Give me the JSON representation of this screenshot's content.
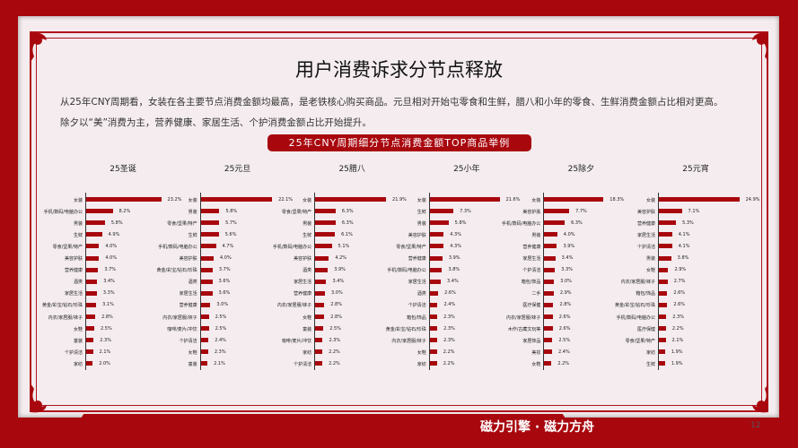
{
  "title": "用户消费诉求分节点释放",
  "paragraphs": [
    "从25年CNY周期看，女装在各主要节点消费金额均最高，是老铁核心购买商品。元旦相对开始屯零食和生鲜，腊八和小年的零食、生鲜消费金额占比相对更高。",
    "除夕以“美”消费为主，营养健康、家居生活、个护消费金额占比开始提升。"
  ],
  "banner": "25年CNY周期细分节点消费金额TOP商品举例",
  "footer": {
    "logo": "磁力引擎 · 磁力方舟",
    "page": "12"
  },
  "colors": {
    "bar": "#a8070e",
    "background": "#f4ecee",
    "frame": "#a8070e"
  },
  "chart_data": [
    {
      "type": "bar",
      "orientation": "horizontal",
      "title": "25圣诞",
      "categories": [
        "女装",
        "手机/数码/电脑办公",
        "男装",
        "生鲜",
        "零食/坚果/特产",
        "美容护肤",
        "营养健康",
        "酒类",
        "家居生活",
        "黄金/彩宝/钻石/珍珠",
        "内衣/家居服/袜子",
        "女鞋",
        "童装",
        "个护清洁",
        "家纺"
      ],
      "values": [
        23.2,
        8.2,
        5.8,
        4.9,
        4.0,
        4.0,
        3.7,
        3.4,
        3.3,
        3.1,
        2.8,
        2.5,
        2.3,
        2.1,
        2.0
      ],
      "labels": [
        "23.2%",
        "8.2%",
        "5.8%",
        "4.9%",
        "4.0%",
        "4.0%",
        "3.7%",
        "3.4%",
        "3.3%",
        "3.1%",
        "2.8%",
        "2.5%",
        "2.3%",
        "2.1%",
        "2.0%"
      ]
    },
    {
      "type": "bar",
      "orientation": "horizontal",
      "title": "25元旦",
      "categories": [
        "女装",
        "男装",
        "零食/坚果/特产",
        "生鲜",
        "手机/数码/电脑办公",
        "美容护肤",
        "黄金/彩宝/钻石/珍珠",
        "酒类",
        "家居生活",
        "营养健康",
        "内衣/家居服/袜子",
        "咖啡/麦片/冲饮",
        "个护清洁",
        "女鞋",
        "童装"
      ],
      "values": [
        22.1,
        5.8,
        5.7,
        5.6,
        4.7,
        4.0,
        3.7,
        3.6,
        3.6,
        3.0,
        2.5,
        2.5,
        2.4,
        2.3,
        2.1
      ],
      "labels": [
        "22.1%",
        "5.8%",
        "5.7%",
        "5.6%",
        "4.7%",
        "4.0%",
        "3.7%",
        "3.6%",
        "3.6%",
        "3.0%",
        "2.5%",
        "2.5%",
        "2.4%",
        "2.3%",
        "2.1%"
      ]
    },
    {
      "type": "bar",
      "orientation": "horizontal",
      "title": "25腊八",
      "categories": [
        "女装",
        "零食/坚果/特产",
        "男装",
        "生鲜",
        "手机/数码/电脑办公",
        "美容护肤",
        "酒类",
        "家居生活",
        "营养健康",
        "内衣/家居服/袜子",
        "女鞋",
        "童装",
        "咖啡/麦片/冲饮",
        "家纺",
        "个护清洁"
      ],
      "values": [
        21.9,
        6.3,
        6.3,
        6.1,
        5.1,
        4.2,
        3.9,
        3.4,
        3.0,
        2.8,
        2.8,
        2.5,
        2.3,
        2.2,
        2.2
      ],
      "labels": [
        "21.9%",
        "6.3%",
        "6.3%",
        "6.1%",
        "5.1%",
        "4.2%",
        "3.9%",
        "3.4%",
        "3.0%",
        "2.8%",
        "2.8%",
        "2.5%",
        "2.3%",
        "2.2%",
        "2.2%"
      ]
    },
    {
      "type": "bar",
      "orientation": "horizontal",
      "title": "25小年",
      "categories": [
        "女装",
        "生鲜",
        "男装",
        "美容护肤",
        "零食/坚果/特产",
        "营养健康",
        "手机/数码/电脑办公",
        "家居生活",
        "酒类",
        "个护清洁",
        "箱包/饰品",
        "黄金/彩宝/钻石/珍珠",
        "内衣/家居服/袜子",
        "女鞋",
        "家纺"
      ],
      "values": [
        21.6,
        7.3,
        5.8,
        4.3,
        4.3,
        3.9,
        3.8,
        3.4,
        2.6,
        2.4,
        2.3,
        2.3,
        2.3,
        2.2,
        2.2
      ],
      "labels": [
        "21.6%",
        "7.3%",
        "5.8%",
        "4.3%",
        "4.3%",
        "3.9%",
        "3.8%",
        "3.4%",
        "2.6%",
        "2.4%",
        "2.3%",
        "2.3%",
        "2.3%",
        "2.2%",
        "2.2%"
      ]
    },
    {
      "type": "bar",
      "orientation": "horizontal",
      "title": "25除夕",
      "categories": [
        "女装",
        "美容护肤",
        "手机/数码/电脑办公",
        "男装",
        "营养健康",
        "家居生活",
        "个护清洁",
        "箱包/饰品",
        "二手",
        "医疗保健",
        "内衣/家居服/袜子",
        "木作/古藏文玩等",
        "家居饰品",
        "美妆",
        "女鞋"
      ],
      "values": [
        18.3,
        7.7,
        6.3,
        4.0,
        3.9,
        3.4,
        3.3,
        3.0,
        2.9,
        2.8,
        2.6,
        2.6,
        2.5,
        2.4,
        2.2
      ],
      "labels": [
        "18.3%",
        "7.7%",
        "6.3%",
        "4.0%",
        "3.9%",
        "3.4%",
        "3.3%",
        "3.0%",
        "2.9%",
        "2.8%",
        "2.6%",
        "2.6%",
        "2.5%",
        "2.4%",
        "2.2%"
      ]
    },
    {
      "type": "bar",
      "orientation": "horizontal",
      "title": "25元宵",
      "categories": [
        "女装",
        "美容护肤",
        "营养健康",
        "家居生活",
        "个护清洁",
        "男装",
        "女鞋",
        "内衣/家居服/袜子",
        "箱包/饰品",
        "黄金/彩宝/钻石/珍珠",
        "手机/数码/电脑办公",
        "医疗保健",
        "零食/坚果/特产",
        "家纺",
        "生鲜"
      ],
      "values": [
        24.9,
        7.1,
        5.3,
        4.1,
        4.1,
        3.8,
        2.9,
        2.7,
        2.6,
        2.6,
        2.3,
        2.2,
        2.1,
        1.9,
        1.9
      ],
      "labels": [
        "24.9%",
        "7.1%",
        "5.3%",
        "4.1%",
        "4.1%",
        "3.8%",
        "2.9%",
        "2.7%",
        "2.6%",
        "2.6%",
        "2.3%",
        "2.2%",
        "2.1%",
        "1.9%",
        "1.9%"
      ]
    }
  ]
}
